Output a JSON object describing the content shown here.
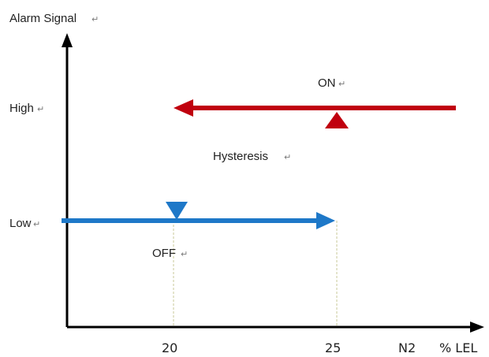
{
  "diagram": {
    "y_axis_title": "Alarm Signal",
    "level_high": "High",
    "level_low": "Low",
    "on_label": "ON",
    "off_label": "OFF",
    "hysteresis_label": "Hysteresis",
    "x_tick_1": "20",
    "x_tick_2": "25",
    "gas_label": "N2",
    "unit_label": "% LEL",
    "paragraph_mark": "↵"
  },
  "colors": {
    "axis": "#000000",
    "on_arrow": "#c0000e",
    "off_arrow": "#1e78c8",
    "dash_top": "#ff2a3c",
    "dash_mid": "#9a4fa0",
    "dash_bottom": "#3c64c8",
    "guide_line": "#cfcf9c"
  }
}
